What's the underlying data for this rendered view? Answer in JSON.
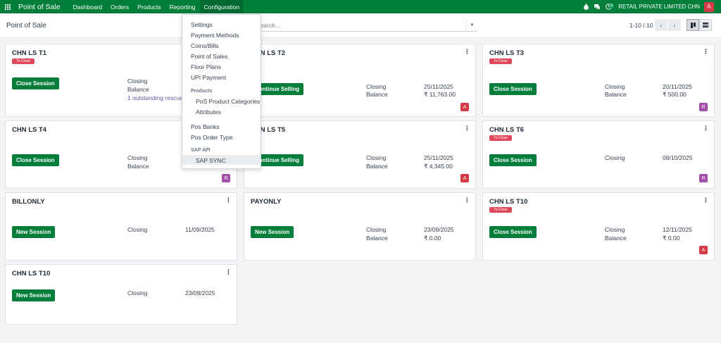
{
  "navbar": {
    "app_name": "Point of Sale",
    "menu": [
      "Dashboard",
      "Orders",
      "Products",
      "Reporting",
      "Configuration"
    ],
    "active_menu": "Configuration",
    "activity_count": "6",
    "company": "RETAIL PRIVATE LIMITED CHN",
    "avatar_letter": "A"
  },
  "control": {
    "breadcrumb": "Point of Sale",
    "search_placeholder": "Search...",
    "pager": "1-10 / 10"
  },
  "dropdown": {
    "items": [
      {
        "label": "Settings"
      },
      {
        "label": "Payment Methods"
      },
      {
        "label": "Coins/Bills"
      },
      {
        "label": "Point of Sales"
      },
      {
        "label": "Floor Plans"
      },
      {
        "label": "UPI Payment"
      }
    ],
    "products_header": "Products",
    "product_items": [
      "PoS Product Categories",
      "Attributes"
    ],
    "more_items": [
      "Pos Banks",
      "Pos Order Type"
    ],
    "sap_header": "SAP API",
    "sap_item": "SAP SYNC"
  },
  "cards": [
    {
      "title": "CHN LS T1",
      "tag": "To Close",
      "button": "Close Session",
      "closing_label": "Closing",
      "balance_label": "Balance",
      "rescue": "1 outstanding rescue s"
    },
    {
      "title": "CHN LS T2",
      "button": "Continue Selling",
      "closing_label": "Closing",
      "closing": "25/11/2025",
      "balance_label": "Balance",
      "balance": "₹ 11,763.00",
      "chip": "A"
    },
    {
      "title": "CHN LS T3",
      "tag": "To Close",
      "button": "Close Session",
      "closing_label": "Closing",
      "closing": "20/11/2025",
      "balance_label": "Balance",
      "balance": "₹ 500.00",
      "chip": "R"
    },
    {
      "title": "CHN LS T4",
      "button": "Close Session",
      "closing_label": "Closing",
      "balance_label": "Balance",
      "chip": "R"
    },
    {
      "title": "CHN LS T5",
      "button": "Continue Selling",
      "closing_label": "Closing",
      "closing": "25/11/2025",
      "balance_label": "Balance",
      "balance": "₹ 4,345.00",
      "chip": "A"
    },
    {
      "title": "CHN LS T6",
      "tag": "To Close",
      "button": "Close Session",
      "closing_label": "Closing",
      "closing": "08/10/2025",
      "chip": "R"
    },
    {
      "title": "BILLONLY",
      "button": "New Session",
      "closing_label": "Closing",
      "closing": "11/09/2025"
    },
    {
      "title": "PAYONLY",
      "button": "New Session",
      "closing_label": "Closing",
      "closing": "23/09/2025",
      "balance_label": "Balance",
      "balance": "₹ 0.00"
    },
    {
      "title": "CHN LS T10",
      "tag": "To Close",
      "button": "Close Session",
      "closing_label": "Closing",
      "closing": "12/11/2025",
      "balance_label": "Balance",
      "balance": "₹ 0.00",
      "chip": "A"
    },
    {
      "title": "CHN LS T10",
      "button": "New Session",
      "closing_label": "Closing",
      "closing": "23/09/2025"
    }
  ],
  "colors": {
    "primary": "#017e3a",
    "tag": "#e0475b",
    "chip_a": "#d63846",
    "chip_r": "#a34fa8"
  }
}
